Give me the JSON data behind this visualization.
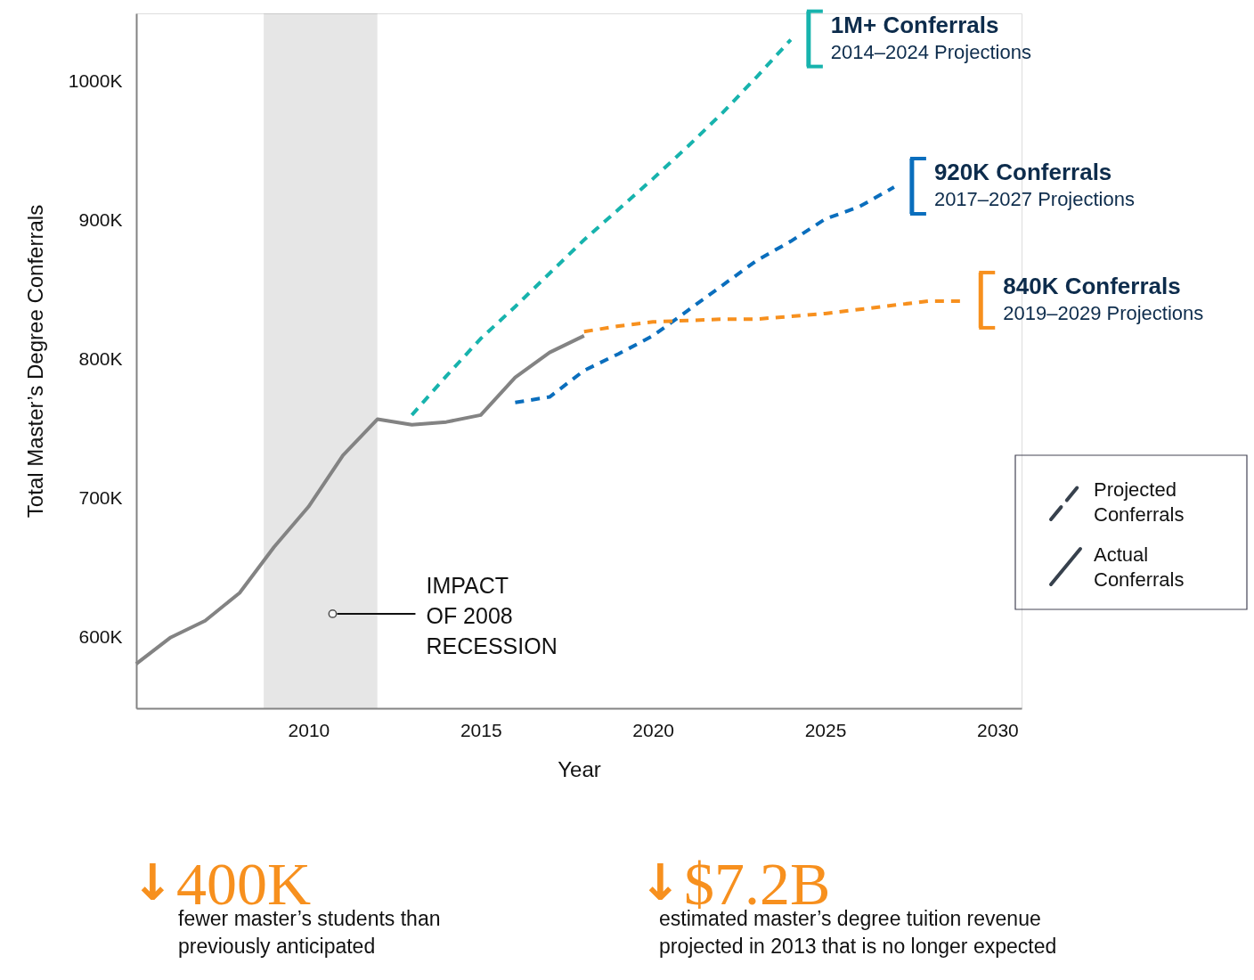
{
  "chart_data": {
    "type": "line",
    "xlabel": "Year",
    "ylabel": "Total Master’s Degree Conferrals",
    "xlim": [
      2005,
      2030.7
    ],
    "ylim": [
      549,
      1049
    ],
    "xticks": [
      2010,
      2015,
      2020,
      2025,
      2030
    ],
    "yticks": [
      {
        "value": 600,
        "label": "600K"
      },
      {
        "value": 700,
        "label": "700K"
      },
      {
        "value": 800,
        "label": "800K"
      },
      {
        "value": 900,
        "label": "900K"
      },
      {
        "value": 1000,
        "label": "1000K"
      }
    ],
    "grid": false,
    "legend": "right",
    "marker": "none",
    "series": [
      {
        "name": "Actual Conferrals",
        "color": "#838383",
        "line_style": "solid",
        "x": [
          2005,
          2006,
          2007,
          2008,
          2009,
          2010,
          2011,
          2012,
          2013,
          2014,
          2015,
          2016,
          2017,
          2018
        ],
        "values": [
          581,
          600,
          612,
          632,
          665,
          694,
          731,
          757,
          753,
          755,
          760,
          787,
          805,
          817
        ]
      },
      {
        "name": "2014–2024 Projections",
        "color": "#17b3ad",
        "line_style": "dashed",
        "x": [
          2013,
          2014,
          2015,
          2016,
          2017,
          2018,
          2019,
          2020,
          2021,
          2022,
          2023,
          2024
        ],
        "values": [
          760,
          788,
          815,
          838,
          862,
          886,
          908,
          930,
          953,
          977,
          1003,
          1030
        ]
      },
      {
        "name": "2017–2027 Projections",
        "color": "#0a6ebd",
        "line_style": "dashed",
        "x": [
          2016,
          2017,
          2018,
          2019,
          2020,
          2021,
          2022,
          2023,
          2024,
          2025,
          2026,
          2027
        ],
        "values": [
          769,
          773,
          792,
          804,
          817,
          835,
          853,
          871,
          885,
          901,
          910,
          924
        ]
      },
      {
        "name": "2019–2029 Projections",
        "color": "#f7901e",
        "line_style": "dashed",
        "x": [
          2018,
          2019,
          2020,
          2021,
          2022,
          2023,
          2024,
          2025,
          2026,
          2027,
          2028,
          2029
        ],
        "values": [
          820,
          824,
          827,
          828,
          829,
          829,
          831,
          833,
          836,
          839,
          842,
          842
        ]
      }
    ],
    "bands": [
      {
        "axis": "x",
        "from": 2008.7,
        "to": 2012,
        "color": "#838383"
      }
    ],
    "annotations": [
      {
        "text": "1M+ Conferrals",
        "x": 2024,
        "y": 1030
      },
      {
        "text": "920K Conferrals",
        "x": 2027,
        "y": 924
      },
      {
        "text": "840K Conferrals",
        "x": 2029,
        "y": 842
      },
      {
        "text": "IMPACT OF 2008 RECESSION",
        "x": 2010.7,
        "y": 617
      },
      "Projected Conferrals",
      "↓400K",
      "fewer master’s students than previously anticipated",
      "↓$7.2B",
      "estimated master’s degree tuition revenue projected in 2013 that is no longer expected"
    ]
  }
}
